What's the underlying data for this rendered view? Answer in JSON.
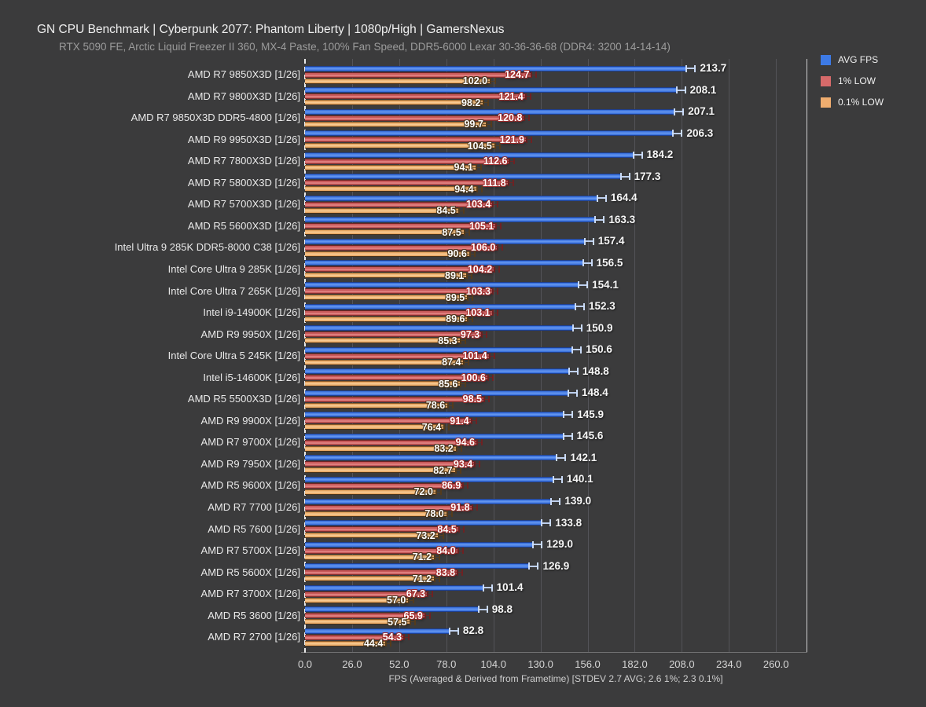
{
  "title": "GN CPU Benchmark | Cyberpunk 2077: Phantom Liberty | 1080p/High | GamersNexus",
  "subtitle": "RTX 5090 FE, Arctic Liquid Freezer II 360, MX-4 Paste, 100% Fan Speed, DDR5-6000 Lexar 30-36-36-68 (DDR4: 3200 14-14-14)",
  "legend": [
    {
      "label": "AVG FPS",
      "color": "#3d7ae5"
    },
    {
      "label": "1% LOW",
      "color": "#d66a6a"
    },
    {
      "label": "0.1% LOW",
      "color": "#efad6f"
    }
  ],
  "colors": {
    "background": "#3b3b3c",
    "avg_bar": "#3c74df",
    "p1_bar": "#c85a5a",
    "p01_bar": "#e8a763",
    "title_text": "#f0f0f0",
    "subtitle_text": "#9b9b9b",
    "gridline": "#535358"
  },
  "chart_data": {
    "type": "bar",
    "orientation": "horizontal",
    "title": "GN CPU Benchmark | Cyberpunk 2077: Phantom Liberty | 1080p/High | GamersNexus",
    "subtitle": "RTX 5090 FE, Arctic Liquid Freezer II 360, MX-4 Paste, 100% Fan Speed, DDR5-6000 Lexar 30-36-36-68 (DDR4: 3200 14-14-14)",
    "xlabel": "FPS (Averaged & Derived from Frametime) [STDEV 2.7 AVG; 2.6 1%; 2.3 0.1%]",
    "ylabel": "",
    "xlim": [
      0,
      260
    ],
    "xticks": [
      0,
      26,
      52,
      78,
      104,
      130,
      156,
      182,
      208,
      234,
      260
    ],
    "grid": true,
    "legend_position": "top-right",
    "categories": [
      "AMD R7 9850X3D [1/26]",
      "AMD R7 9800X3D [1/26]",
      "AMD R7 9850X3D DDR5-4800 [1/26]",
      "AMD R9 9950X3D [1/26]",
      "AMD R7 7800X3D [1/26]",
      "AMD R7 5800X3D [1/26]",
      "AMD R7 5700X3D [1/26]",
      "AMD R5 5600X3D [1/26]",
      "Intel Ultra 9 285K DDR5-8000 C38 [1/26]",
      "Intel Core Ultra 9 285K [1/26]",
      "Intel Core Ultra 7 265K [1/26]",
      "Intel i9-14900K [1/26]",
      "AMD R9 9950X [1/26]",
      "Intel Core Ultra 5 245K [1/26]",
      "Intel i5-14600K [1/26]",
      "AMD R5 5500X3D [1/26]",
      "AMD R9 9900X [1/26]",
      "AMD R7 9700X [1/26]",
      "AMD R9 7950X [1/26]",
      "AMD R5 9600X [1/26]",
      "AMD R7 7700 [1/26]",
      "AMD R5 7600 [1/26]",
      "AMD R7 5700X [1/26]",
      "AMD R5 5600X [1/26]",
      "AMD R7 3700X [1/26]",
      "AMD R5 3600 [1/26]",
      "AMD R7 2700 [1/26]"
    ],
    "series": [
      {
        "name": "AVG FPS",
        "color": "#3c74df",
        "values": [
          213.7,
          208.1,
          207.1,
          206.3,
          184.2,
          177.3,
          164.4,
          163.3,
          157.4,
          156.5,
          154.1,
          152.3,
          150.9,
          150.6,
          148.8,
          148.4,
          145.9,
          145.6,
          142.1,
          140.1,
          139.0,
          133.8,
          129.0,
          126.9,
          101.4,
          98.8,
          82.8
        ]
      },
      {
        "name": "1% LOW",
        "color": "#c85a5a",
        "values": [
          124.7,
          121.4,
          120.8,
          121.9,
          112.6,
          111.8,
          103.4,
          105.1,
          106.0,
          104.2,
          103.3,
          103.1,
          97.3,
          101.4,
          100.6,
          98.5,
          91.4,
          94.6,
          93.4,
          86.9,
          91.8,
          84.5,
          84.0,
          83.8,
          67.3,
          65.9,
          54.3
        ]
      },
      {
        "name": "0.1% LOW",
        "color": "#e8a763",
        "values": [
          102.0,
          98.2,
          99.7,
          104.5,
          94.1,
          94.4,
          84.5,
          87.5,
          90.6,
          89.1,
          89.5,
          89.6,
          85.3,
          87.4,
          85.6,
          78.6,
          76.4,
          83.2,
          82.7,
          72.0,
          78.0,
          73.2,
          71.2,
          71.2,
          57.0,
          57.5,
          44.4
        ]
      }
    ]
  }
}
